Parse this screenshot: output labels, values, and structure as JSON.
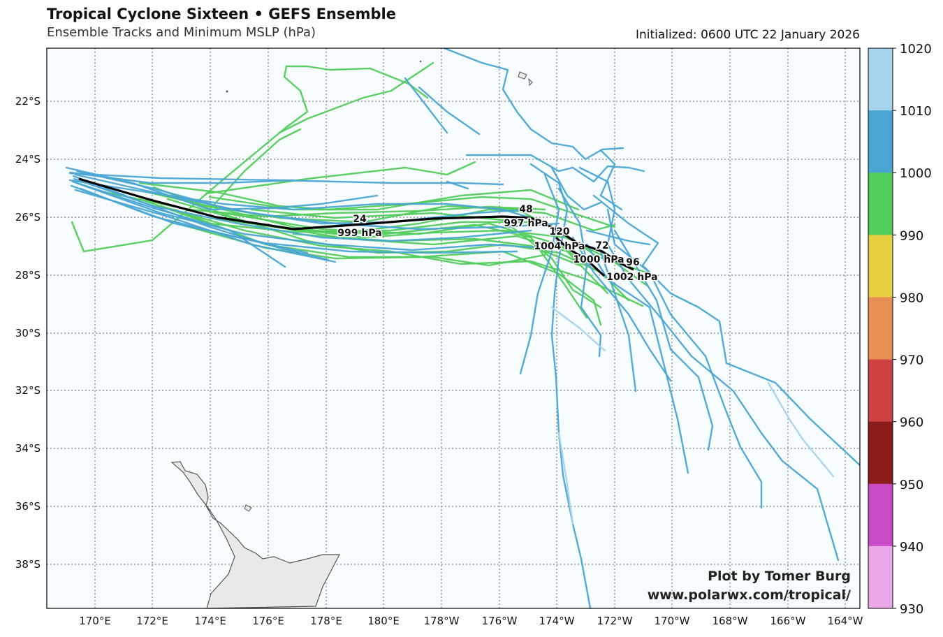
{
  "header": {
    "title": "Tropical Cyclone Sixteen • GEFS Ensemble",
    "subtitle": "Ensemble Tracks and Minimum MSLP (hPa)",
    "initialized": "Initialized: 0600 UTC 22 January 2026"
  },
  "map": {
    "lat_labels": [
      "22°S",
      "24°S",
      "26°S",
      "28°S",
      "30°S",
      "32°S",
      "34°S",
      "36°S",
      "38°S"
    ],
    "lon_labels": [
      "170°E",
      "172°E",
      "174°E",
      "176°E",
      "178°E",
      "180°E",
      "178°W",
      "176°W",
      "174°W",
      "172°W",
      "170°W",
      "168°W",
      "166°W",
      "164°W"
    ],
    "ocean_color": "#f7fcfe",
    "land_color": "#e9e9e9",
    "land_name": "New Zealand North Island"
  },
  "colorbar": {
    "labels": [
      "1020",
      "1010",
      "1000",
      "990",
      "980",
      "970",
      "960",
      "950",
      "940",
      "930"
    ],
    "colors": [
      "#a6d4ec",
      "#4aa5d3",
      "#52cc5c",
      "#e7d03f",
      "#e88f56",
      "#cf4244",
      "#8b1c1c",
      "#c94cc6",
      "#eba8e8"
    ]
  },
  "mean_track": {
    "labels": [
      {
        "hour": "24",
        "pressure": "999 hPa"
      },
      {
        "hour": "48",
        "pressure": "997 hPa"
      },
      {
        "hour": "120",
        "pressure": "1004 hPa"
      },
      {
        "hour": "72",
        "pressure": "1000 hPa"
      },
      {
        "hour": "96",
        "pressure": "1002 hPa"
      }
    ]
  },
  "credit": {
    "line1": "Plot by Tomer Burg",
    "line2": "www.polarwx.com/tropical/"
  }
}
